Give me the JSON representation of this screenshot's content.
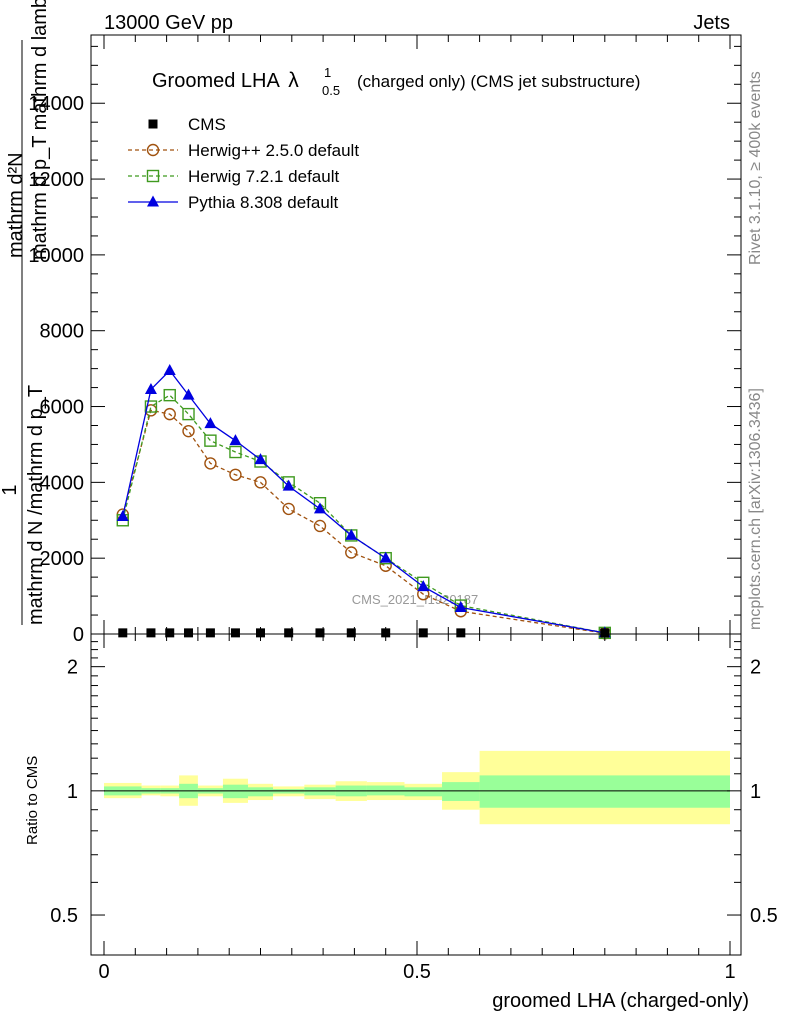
{
  "header": {
    "left": "13000 GeV pp",
    "right": "Jets"
  },
  "side_labels": {
    "rivet": "Rivet 3.1.10, ≥ 400k events",
    "mcplots": "mcplots.cern.ch [arXiv:1306.3436]"
  },
  "watermark": "CMS_2021_I1920187",
  "chart_data": [
    {
      "type": "line",
      "title": "Groomed LHA",
      "title_symbol": "λ",
      "title_sup": "1",
      "title_sub": "0.5",
      "subtitle": "(charged only) (CMS jet substructure)",
      "ylabel_lines": [
        "mathrm d²N",
        "mathrm d p_T mathrm d lambda",
        "1",
        "mathrm d N /mathrm d p_T"
      ],
      "ylabel_fraction_top": "mathrm d²N",
      "ylabel_fraction_bottom": "mathrm d p_T mathrm d lambda",
      "ylabel_outer_top": "1",
      "ylabel_outer_bottom": "mathrm d N /mathrm d p_T",
      "xlim": [
        0,
        1
      ],
      "ylim": [
        0,
        15800
      ],
      "yticks": [
        0,
        2000,
        4000,
        6000,
        8000,
        10000,
        12000,
        14000
      ],
      "ytick_labels": [
        "0",
        "2000",
        "4000",
        "6000",
        "8000",
        "10000",
        "12000",
        "14000"
      ],
      "legend_position": "top-left",
      "x": [
        0.03,
        0.075,
        0.105,
        0.135,
        0.17,
        0.21,
        0.25,
        0.295,
        0.345,
        0.395,
        0.45,
        0.51,
        0.57,
        0.8
      ],
      "series": [
        {
          "name": "CMS",
          "color": "#000000",
          "marker": "square-filled",
          "line": "none",
          "values": [
            30,
            30,
            30,
            30,
            30,
            30,
            30,
            30,
            30,
            30,
            30,
            30,
            30,
            30
          ]
        },
        {
          "name": "Herwig++ 2.5.0 default",
          "color": "#a0520f",
          "marker": "circle-open",
          "line": "dashed",
          "values": [
            3150,
            5900,
            5800,
            5350,
            4500,
            4200,
            4000,
            3300,
            2850,
            2150,
            1800,
            1050,
            600,
            20
          ]
        },
        {
          "name": "Herwig 7.2.1 default",
          "color": "#3f9a1f",
          "marker": "square-open",
          "line": "dashed",
          "values": [
            3000,
            6000,
            6300,
            5800,
            5100,
            4800,
            4550,
            4000,
            3450,
            2600,
            2000,
            1350,
            750,
            30
          ]
        },
        {
          "name": "Pythia 8.308 default",
          "color": "#0000e0",
          "marker": "triangle-filled",
          "line": "solid",
          "values": [
            3100,
            6450,
            6950,
            6300,
            5550,
            5100,
            4600,
            3900,
            3300,
            2600,
            2000,
            1250,
            700,
            30
          ]
        }
      ]
    },
    {
      "type": "area",
      "ylabel": "Ratio to CMS",
      "xlabel": "groomed LHA (charged-only)",
      "xlim": [
        -0.02,
        1.0
      ],
      "ylim": [
        0.4,
        2.4
      ],
      "yscale": "log",
      "yticks": [
        0.5,
        1,
        2
      ],
      "ytick_labels": [
        "0.5",
        "1",
        "2"
      ],
      "xticks": [
        0,
        0.5,
        1
      ],
      "xtick_labels": [
        "0",
        "0.5",
        "1"
      ],
      "bins": [
        {
          "lo": 0.0,
          "hi": 0.06,
          "inner": [
            0.975,
            1.025
          ],
          "outer": [
            0.96,
            1.045
          ]
        },
        {
          "lo": 0.06,
          "hi": 0.09,
          "inner": [
            0.985,
            1.015
          ],
          "outer": [
            0.975,
            1.03
          ]
        },
        {
          "lo": 0.09,
          "hi": 0.12,
          "inner": [
            0.985,
            1.015
          ],
          "outer": [
            0.97,
            1.03
          ]
        },
        {
          "lo": 0.12,
          "hi": 0.15,
          "inner": [
            0.96,
            1.04
          ],
          "outer": [
            0.92,
            1.09
          ]
        },
        {
          "lo": 0.15,
          "hi": 0.19,
          "inner": [
            0.985,
            1.015
          ],
          "outer": [
            0.97,
            1.03
          ]
        },
        {
          "lo": 0.19,
          "hi": 0.23,
          "inner": [
            0.96,
            1.035
          ],
          "outer": [
            0.935,
            1.07
          ]
        },
        {
          "lo": 0.23,
          "hi": 0.27,
          "inner": [
            0.97,
            1.02
          ],
          "outer": [
            0.95,
            1.04
          ]
        },
        {
          "lo": 0.27,
          "hi": 0.32,
          "inner": [
            0.985,
            1.01
          ],
          "outer": [
            0.97,
            1.025
          ]
        },
        {
          "lo": 0.32,
          "hi": 0.37,
          "inner": [
            0.975,
            1.02
          ],
          "outer": [
            0.955,
            1.035
          ]
        },
        {
          "lo": 0.37,
          "hi": 0.42,
          "inner": [
            0.97,
            1.03
          ],
          "outer": [
            0.945,
            1.055
          ]
        },
        {
          "lo": 0.42,
          "hi": 0.48,
          "inner": [
            0.975,
            1.03
          ],
          "outer": [
            0.95,
            1.05
          ]
        },
        {
          "lo": 0.48,
          "hi": 0.54,
          "inner": [
            0.97,
            1.02
          ],
          "outer": [
            0.95,
            1.04
          ]
        },
        {
          "lo": 0.54,
          "hi": 0.6,
          "inner": [
            0.945,
            1.05
          ],
          "outer": [
            0.9,
            1.11
          ]
        },
        {
          "lo": 0.6,
          "hi": 1.0,
          "inner": [
            0.91,
            1.09
          ],
          "outer": [
            0.83,
            1.25
          ]
        }
      ],
      "colors": {
        "inner": "#99ff99",
        "outer": "#ffff99",
        "line": "#000000"
      }
    }
  ]
}
